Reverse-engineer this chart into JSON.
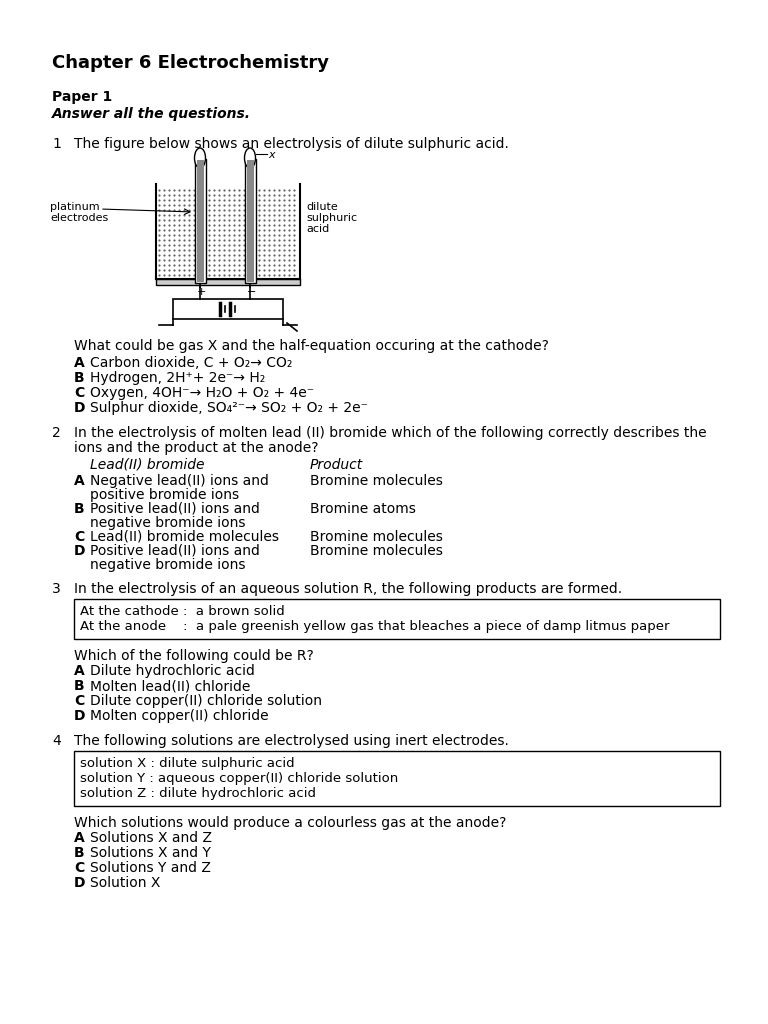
{
  "title": "Chapter 6 Electrochemistry",
  "paper": "Paper 1",
  "instruction": "Answer all the questions.",
  "bg_color": "#ffffff",
  "q1_intro": "The figure below shows an electrolysis of dilute sulphuric acid.",
  "q1_question": "What could be gas X and the half-equation occuring at the cathode?",
  "q1_options": [
    [
      "A",
      "Carbon dioxide, C + O₂→ CO₂"
    ],
    [
      "B",
      "Hydrogen, 2H⁺+ 2e⁻→ H₂"
    ],
    [
      "C",
      "Oxygen, 4OH⁻→ H₂O + O₂ + 4e⁻"
    ],
    [
      "D",
      "Sulphur dioxide, SO₄²⁻→ SO₂ + O₂ + 2e⁻"
    ]
  ],
  "q2_intro": "In the electrolysis of molten lead (II) bromide which of the following correctly describes the\nions and the product at the anode?",
  "q2_col1_header": "Lead(II) bromide",
  "q2_col2_header": "Product",
  "q2_options": [
    [
      "A",
      "Negative lead(II) ions and\npositive bromide ions",
      "Bromine molecules"
    ],
    [
      "B",
      "Positive lead(II) ions and\nnegative bromide ions",
      "Bromine atoms"
    ],
    [
      "C",
      "Lead(II) bromide molecules",
      "Bromine molecules"
    ],
    [
      "D",
      "Positive lead(II) ions and\nnegative bromide ions",
      "Bromine molecules"
    ]
  ],
  "q3_intro": "In the electrolysis of an aqueous solution R, the following products are formed.",
  "q3_box": [
    "At the cathode :  a brown solid",
    "At the anode    :  a pale greenish yellow gas that bleaches a piece of damp litmus paper"
  ],
  "q3_question": "Which of the following could be R?",
  "q3_options": [
    [
      "A",
      "Dilute hydrochloric acid"
    ],
    [
      "B",
      "Molten lead(II) chloride"
    ],
    [
      "C",
      "Dilute copper(II) chloride solution"
    ],
    [
      "D",
      "Molten copper(II) chloride"
    ]
  ],
  "q4_intro": "The following solutions are electrolysed using inert electrodes.",
  "q4_box": [
    "solution X : dilute sulphuric acid",
    "solution Y : aqueous copper(II) chloride solution",
    "solution Z : dilute hydrochloric acid"
  ],
  "q4_question": "Which solutions would produce a colourless gas at the anode?",
  "q4_options": [
    [
      "A",
      "Solutions X and Z"
    ],
    [
      "B",
      "Solutions X and Y"
    ],
    [
      "C",
      "Solutions Y and Z"
    ],
    [
      "D",
      "Solution X"
    ]
  ]
}
